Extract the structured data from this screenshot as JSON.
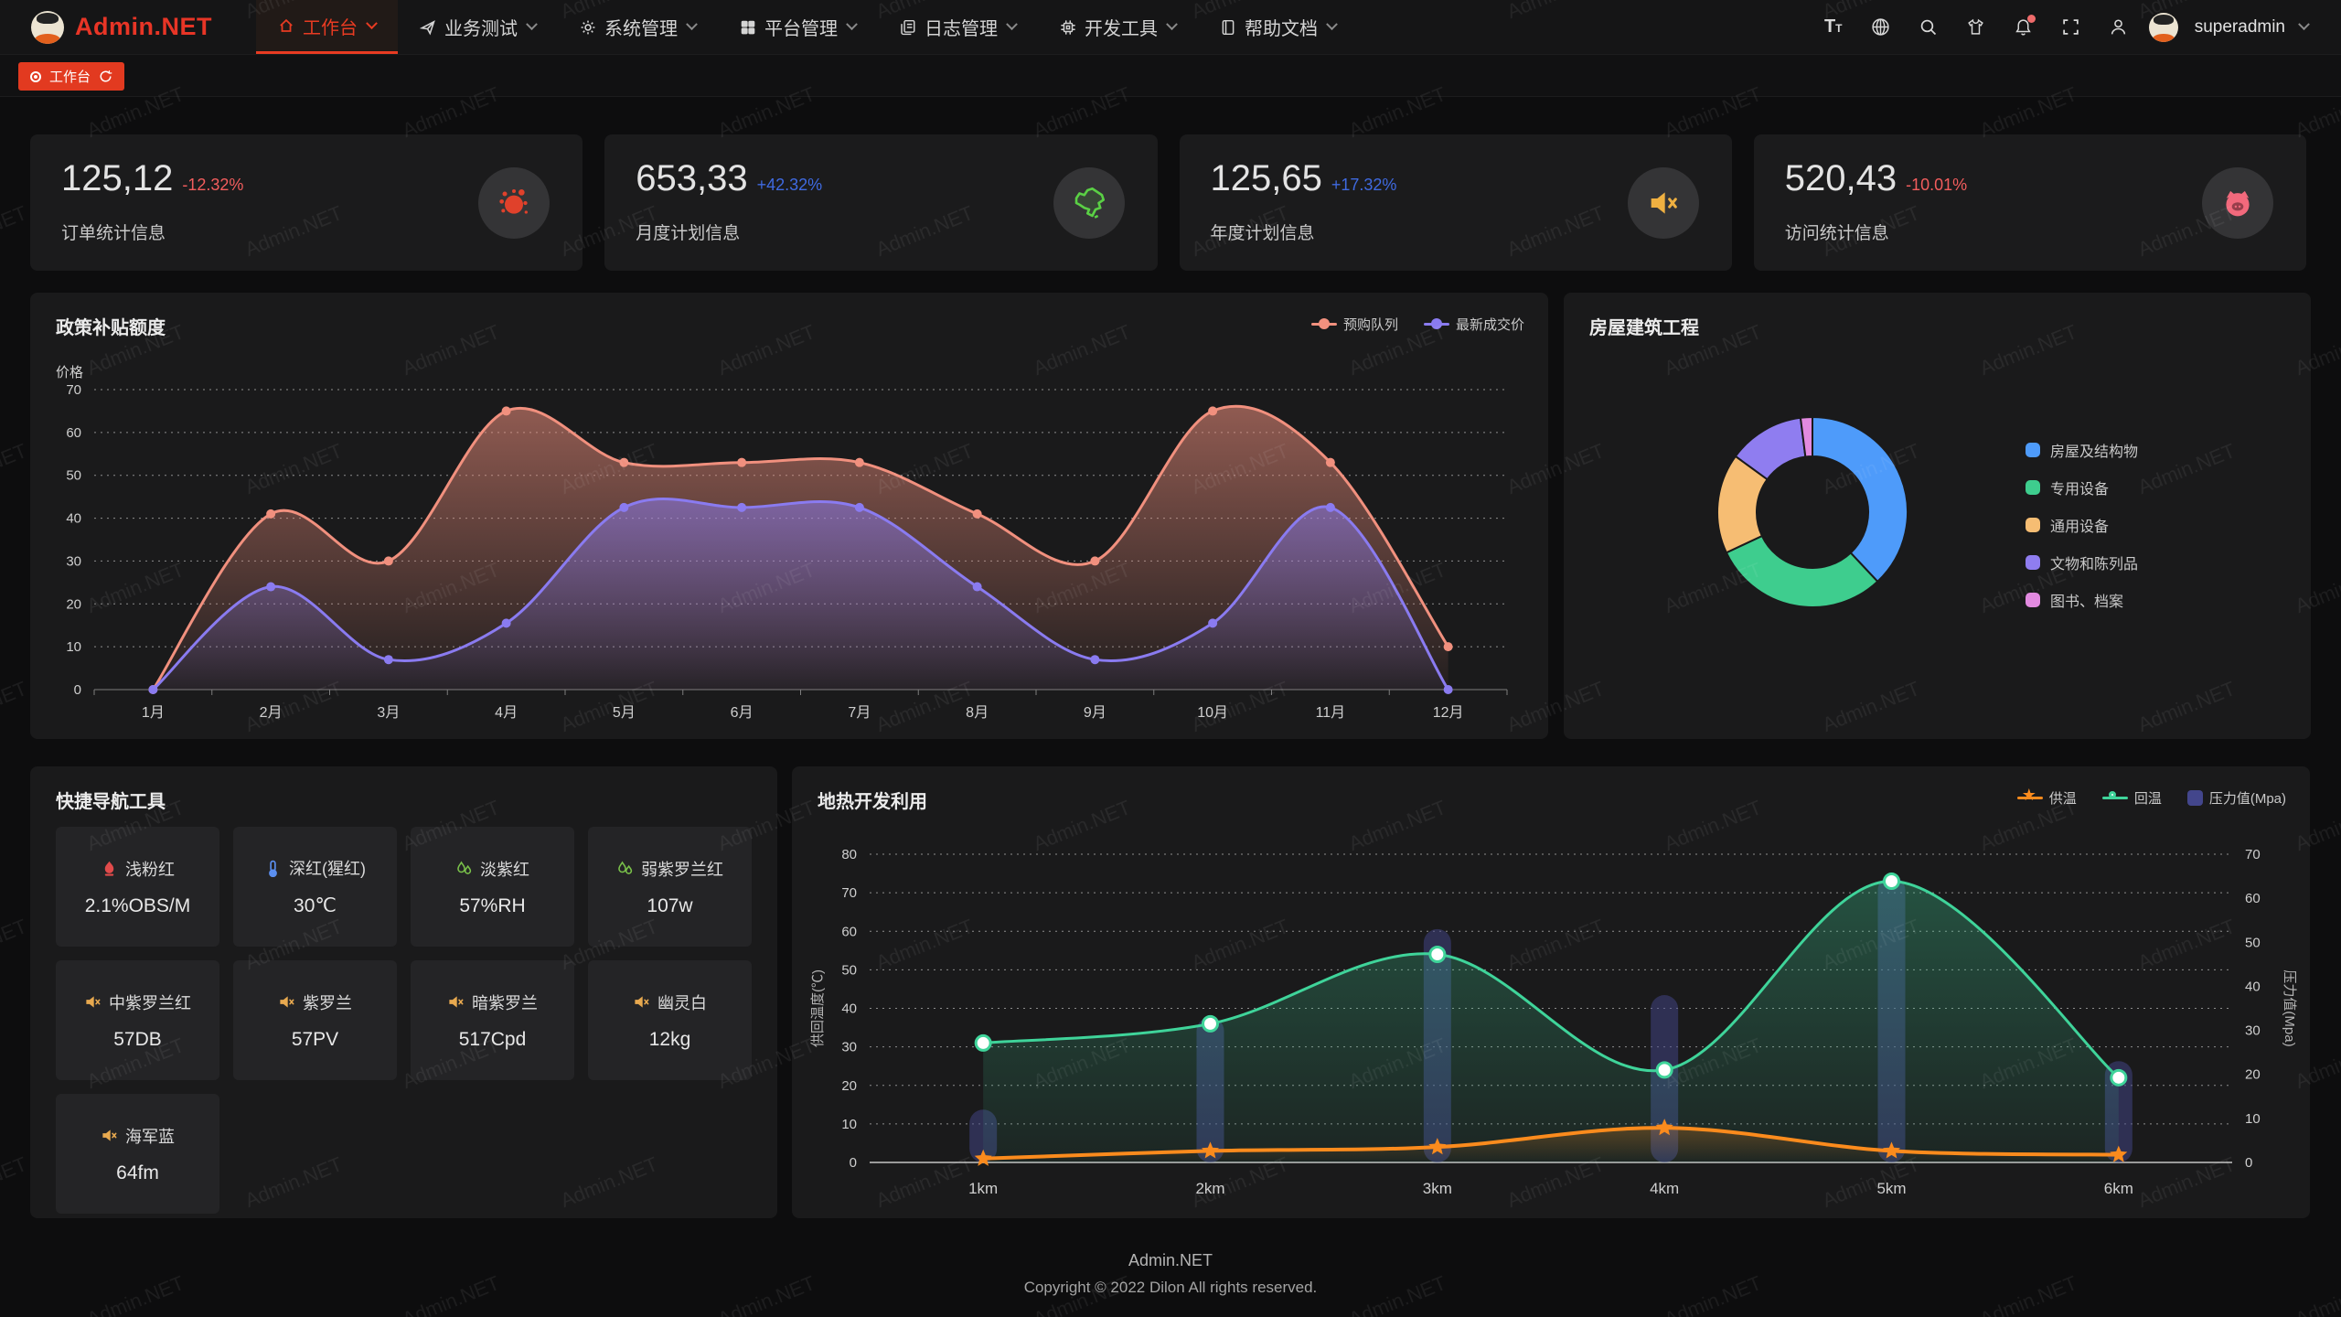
{
  "nav": {
    "brand": "Admin.NET",
    "menu": [
      {
        "label": "工作台"
      },
      {
        "label": "业务测试"
      },
      {
        "label": "系统管理"
      },
      {
        "label": "平台管理"
      },
      {
        "label": "日志管理"
      },
      {
        "label": "开发工具"
      },
      {
        "label": "帮助文档"
      }
    ],
    "user": "superadmin"
  },
  "tabbar": {
    "tabs": [
      {
        "label": "工作台"
      }
    ]
  },
  "cards": [
    {
      "value": "125,12",
      "delta": "-12.32%",
      "label": "订单统计信息"
    },
    {
      "value": "653,33",
      "delta": "+42.32%",
      "label": "月度计划信息"
    },
    {
      "value": "125,65",
      "delta": "+17.32%",
      "label": "年度计划信息"
    },
    {
      "value": "520,43",
      "delta": "-10.01%",
      "label": "访问统计信息"
    }
  ],
  "quicknav": {
    "title": "快捷导航工具",
    "items": [
      {
        "label": "浅粉红",
        "value": "2.1%OBS/M"
      },
      {
        "label": "深红(猩红)",
        "value": "30℃"
      },
      {
        "label": "淡紫红",
        "value": "57%RH"
      },
      {
        "label": "弱紫罗兰红",
        "value": "107w"
      },
      {
        "label": "中紫罗兰红",
        "value": "57DB"
      },
      {
        "label": "紫罗兰",
        "value": "57PV"
      },
      {
        "label": "暗紫罗兰",
        "value": "517Cpd"
      },
      {
        "label": "幽灵白",
        "value": "12kg"
      },
      {
        "label": "海军蓝",
        "value": "64fm"
      }
    ]
  },
  "chart_data": [
    {
      "id": "subsidy",
      "type": "area",
      "title": "政策补贴额度",
      "y_name": "价格",
      "ylim": [
        0,
        70
      ],
      "y_step": 10,
      "grid": true,
      "legend_position": "top-right",
      "categories": [
        "1月",
        "2月",
        "3月",
        "4月",
        "5月",
        "6月",
        "7月",
        "8月",
        "9月",
        "10月",
        "11月",
        "12月"
      ],
      "series": [
        {
          "name": "预购队列",
          "color": "#f1907e",
          "values": [
            0,
            41,
            30,
            65,
            53,
            53,
            53,
            41,
            30,
            65,
            53,
            10
          ]
        },
        {
          "name": "最新成交价",
          "color": "#8a7bf0",
          "values": [
            0,
            24,
            7,
            15.5,
            42.5,
            42.5,
            42.5,
            24,
            7,
            15.5,
            42.5,
            0
          ]
        }
      ]
    },
    {
      "id": "building",
      "type": "pie",
      "title": "房屋建筑工程",
      "legend_position": "right",
      "slices": [
        {
          "label": "房屋及结构物",
          "color": "#4e9bfa",
          "value": 38
        },
        {
          "label": "专用设备",
          "color": "#3ecd8e",
          "value": 30
        },
        {
          "label": "通用设备",
          "color": "#f6bd73",
          "value": 17
        },
        {
          "label": "文物和陈列品",
          "color": "#8f7df0",
          "value": 13
        },
        {
          "label": "图书、档案",
          "color": "#e28ae0",
          "value": 2
        }
      ]
    },
    {
      "id": "geothermal",
      "type": "mixed-line-bar",
      "title": "地热开发利用",
      "legend_position": "top-right",
      "categories": [
        "1km",
        "2km",
        "3km",
        "4km",
        "5km",
        "6km"
      ],
      "left_axis": {
        "name": "供回温度(℃)",
        "min": 0,
        "max": 80,
        "step": 10
      },
      "right_axis": {
        "name": "压力值(Mpa)",
        "min": 0,
        "max": 70,
        "step": 10
      },
      "series": [
        {
          "name": "供温",
          "type": "line",
          "axis": "left",
          "marker": "star",
          "color": "#fb8b1d",
          "values": [
            1,
            3,
            4,
            9,
            3,
            2
          ]
        },
        {
          "name": "回温",
          "type": "line",
          "axis": "left",
          "marker": "circle",
          "color": "#3fd49a",
          "values": [
            31,
            36,
            54,
            24,
            73,
            22
          ]
        },
        {
          "name": "压力值(Mpa)",
          "type": "bar",
          "axis": "right",
          "color": "#43468c",
          "values": [
            12,
            33,
            53,
            38,
            65,
            23
          ]
        }
      ]
    }
  ],
  "footer": {
    "brand": "Admin.NET",
    "copyright": "Copyright © 2022 Dilon All rights reserved."
  },
  "watermark": {
    "text": "Admin.NET"
  }
}
